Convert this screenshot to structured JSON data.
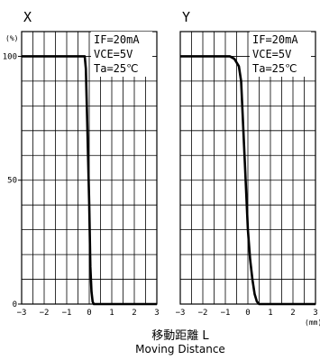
{
  "y_unit": "(%)",
  "x_unit": "(mm)",
  "xlabel_jp": "移動距離 L",
  "xlabel_en": "Moving Distance",
  "chart_data": [
    {
      "type": "line",
      "title": "X",
      "annotations": [
        "IF=20mA",
        "VCE=5V",
        "Ta=25℃"
      ],
      "xlabel": "移動距離 L / Moving Distance",
      "ylabel": "(%)",
      "x_unit": "(mm)",
      "xlim": [
        -3,
        3
      ],
      "ylim": [
        0,
        110
      ],
      "x_ticks": [
        "-3",
        "-2",
        "-1",
        "0",
        "1",
        "2",
        "3"
      ],
      "y_ticks": [
        "0",
        "50",
        "100"
      ],
      "grid": true,
      "series": [
        {
          "x": [
            -3,
            -0.2,
            -0.15,
            -0.08,
            0.0,
            0.05,
            0.1,
            0.15,
            0.2,
            3
          ],
          "y": [
            100,
            100,
            95,
            70,
            40,
            15,
            5,
            1,
            0,
            0
          ]
        }
      ]
    },
    {
      "type": "line",
      "title": "Y",
      "annotations": [
        "IF=20mA",
        "VCE=5V",
        "Ta=25℃"
      ],
      "xlabel": "移動距離 L / Moving Distance",
      "ylabel": "",
      "x_unit": "(mm)",
      "xlim": [
        -3,
        3
      ],
      "ylim": [
        0,
        110
      ],
      "x_ticks": [
        "-3",
        "-2",
        "-1",
        "0",
        "1",
        "2",
        "3"
      ],
      "y_ticks": [],
      "grid": true,
      "series": [
        {
          "x": [
            -3,
            -0.8,
            -0.6,
            -0.4,
            -0.3,
            -0.25,
            -0.2,
            -0.1,
            0.0,
            0.1,
            0.2,
            0.3,
            0.4,
            0.5,
            3
          ],
          "y": [
            100,
            100,
            99,
            96,
            90,
            80,
            70,
            50,
            30,
            18,
            10,
            4,
            1,
            0,
            0
          ]
        }
      ]
    }
  ]
}
